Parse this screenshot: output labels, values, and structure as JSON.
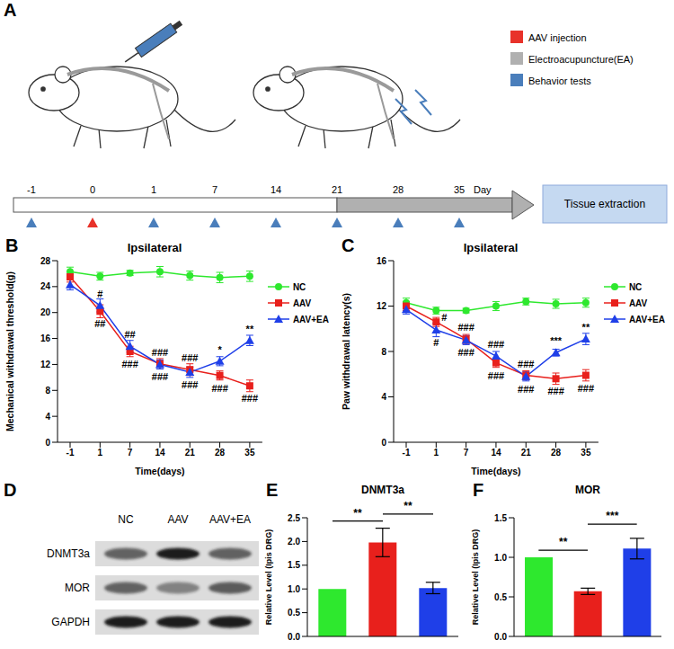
{
  "diagram": {
    "panel": "A",
    "legend": [
      {
        "label": "AAV injection",
        "color": "#e8322a"
      },
      {
        "label": "Electroacupuncture(EA)",
        "color": "#b0b0b0"
      },
      {
        "label": "Behavior tests",
        "color": "#4a7ebb"
      }
    ],
    "timeline": {
      "days": [
        -1,
        0,
        1,
        7,
        14,
        21,
        28,
        35
      ],
      "unit": "Day",
      "injection_days": [
        0
      ],
      "ea_days": [
        21,
        35
      ],
      "behavior_test_days": [
        -1,
        1,
        7,
        14,
        21,
        28,
        35
      ],
      "end_label": "Tissue extraction"
    }
  },
  "blot": {
    "panel": "D",
    "lanes": [
      "NC",
      "AAV",
      "AAV+EA"
    ],
    "rows": [
      "DNMT3a",
      "MOR",
      "GAPDH"
    ]
  },
  "chart_data": [
    {
      "panel": "B",
      "type": "line",
      "title": "Ipsilateral",
      "x_label": "Time(days)",
      "y_label": "Mechanical withdrawal threshold(g)",
      "categories": [
        "-1",
        "1",
        "7",
        "14",
        "21",
        "28",
        "35"
      ],
      "series": [
        {
          "name": "NC",
          "color": "#2ee82e",
          "marker": "circle",
          "values": [
            26.3,
            25.6,
            26.1,
            26.3,
            25.7,
            25.4,
            25.6
          ],
          "errors": [
            0.7,
            0.6,
            0.4,
            0.8,
            0.7,
            0.8,
            0.8
          ]
        },
        {
          "name": "AAV",
          "color": "#e8201c",
          "marker": "square",
          "values": [
            25.5,
            20.2,
            14.0,
            12.1,
            11.2,
            10.3,
            8.7
          ],
          "errors": [
            0.8,
            1.0,
            0.8,
            0.8,
            0.9,
            0.7,
            0.9
          ]
        },
        {
          "name": "AAV+EA",
          "color": "#1f3fe8",
          "marker": "triangle",
          "values": [
            24.3,
            21.1,
            14.8,
            12.0,
            10.8,
            12.5,
            15.7
          ],
          "errors": [
            0.8,
            1.0,
            0.9,
            0.7,
            0.8,
            0.7,
            0.8
          ]
        }
      ],
      "ylim": [
        0,
        28
      ],
      "yticks": [
        0,
        4,
        8,
        12,
        16,
        20,
        24,
        28
      ],
      "grid": false,
      "legend": "upper right",
      "annotations": [
        {
          "x": "1",
          "series": "AAV+EA",
          "label": "#"
        },
        {
          "x": "1",
          "series": "AAV",
          "label": "##"
        },
        {
          "x": "7",
          "series": "AAV+EA",
          "label": "##"
        },
        {
          "x": "7",
          "series": "AAV",
          "label": "###"
        },
        {
          "x": "14",
          "series": "AAV+EA",
          "label": "###"
        },
        {
          "x": "14",
          "series": "AAV",
          "label": "###"
        },
        {
          "x": "21",
          "series": "AAV+EA",
          "label": "###"
        },
        {
          "x": "21",
          "series": "AAV",
          "label": "###"
        },
        {
          "x": "28",
          "series": "AAV+EA",
          "label": "*"
        },
        {
          "x": "28",
          "series": "AAV",
          "label": "###"
        },
        {
          "x": "35",
          "series": "AAV+EA",
          "label": "**"
        },
        {
          "x": "35",
          "series": "AAV",
          "label": "###"
        }
      ]
    },
    {
      "panel": "C",
      "type": "line",
      "title": "Ipsilateral",
      "x_label": "Time(days)",
      "y_label": "Paw withdrawal latency(s)",
      "categories": [
        "-1",
        "1",
        "7",
        "14",
        "21",
        "28",
        "35"
      ],
      "series": [
        {
          "name": "NC",
          "color": "#2ee82e",
          "marker": "circle",
          "values": [
            12.3,
            11.6,
            11.6,
            12.0,
            12.4,
            12.2,
            12.3
          ],
          "errors": [
            0.4,
            0.3,
            0.2,
            0.4,
            0.3,
            0.4,
            0.4
          ]
        },
        {
          "name": "AAV",
          "color": "#e8201c",
          "marker": "square",
          "values": [
            12.0,
            10.6,
            9.1,
            7.0,
            5.9,
            5.6,
            5.9
          ],
          "errors": [
            0.4,
            0.4,
            0.4,
            0.4,
            0.4,
            0.5,
            0.5
          ]
        },
        {
          "name": "AAV+EA",
          "color": "#1f3fe8",
          "marker": "triangle",
          "values": [
            11.7,
            9.9,
            9.0,
            7.6,
            5.8,
            7.9,
            9.1
          ],
          "errors": [
            0.4,
            0.6,
            0.4,
            0.4,
            0.4,
            0.3,
            0.5
          ]
        }
      ],
      "ylim": [
        0,
        16
      ],
      "yticks": [
        0,
        4,
        8,
        12,
        16
      ],
      "grid": false,
      "legend": "upper right",
      "annotations": [
        {
          "x": "1",
          "series": "AAV",
          "label": "#"
        },
        {
          "x": "1",
          "series": "AAV+EA",
          "label": "#"
        },
        {
          "x": "7",
          "series": "AAV",
          "label": "###"
        },
        {
          "x": "7",
          "series": "AAV+EA",
          "label": "###"
        },
        {
          "x": "14",
          "series": "AAV",
          "label": "###"
        },
        {
          "x": "14",
          "series": "AAV+EA",
          "label": "###"
        },
        {
          "x": "21",
          "series": "AAV",
          "label": "###"
        },
        {
          "x": "21",
          "series": "AAV+EA",
          "label": "###"
        },
        {
          "x": "28",
          "series": "AAV+EA",
          "label": "***"
        },
        {
          "x": "28",
          "series": "AAV",
          "label": "###"
        },
        {
          "x": "35",
          "series": "AAV+EA",
          "label": "**"
        },
        {
          "x": "35",
          "series": "AAV",
          "label": "###"
        }
      ]
    },
    {
      "panel": "E",
      "type": "bar",
      "title": "DNMT3a",
      "y_label": "Relative Level (Ipis DRG)",
      "categories": [
        null,
        null,
        null
      ],
      "values": [
        1.0,
        1.98,
        1.02
      ],
      "errors": [
        0,
        0.3,
        0.12
      ],
      "colors": [
        "#2ee82e",
        "#e8201c",
        "#1f3fe8"
      ],
      "ylim": [
        0,
        2.5
      ],
      "yticks": [
        {
          "value": 0,
          "label": "0.0"
        },
        0.5,
        {
          "value": 1,
          "label": "1.0"
        },
        1.5,
        {
          "value": 2,
          "label": "2.0"
        },
        2.5
      ],
      "grid": false,
      "tick_labels": "y",
      "comparisons": [
        {
          "bars": [
            0,
            1
          ],
          "label": "**"
        },
        {
          "bars": [
            1,
            2
          ],
          "label": "**"
        }
      ]
    },
    {
      "panel": "F",
      "type": "bar",
      "title": "MOR",
      "y_label": "Relative Level (Ipis DRG)",
      "categories": [
        null,
        null,
        null
      ],
      "values": [
        1.0,
        0.57,
        1.11
      ],
      "errors": [
        0,
        0.04,
        0.13
      ],
      "colors": [
        "#2ee82e",
        "#e8201c",
        "#1f3fe8"
      ],
      "ylim": [
        0,
        1.5
      ],
      "yticks": [
        {
          "value": 0,
          "label": "0.0"
        },
        0.5,
        {
          "value": 1,
          "label": "1.0"
        },
        1.5
      ],
      "grid": false,
      "tick_labels": "y",
      "comparisons": [
        {
          "bars": [
            0,
            1
          ],
          "label": "**"
        },
        {
          "bars": [
            1,
            2
          ],
          "label": "***"
        }
      ]
    }
  ]
}
